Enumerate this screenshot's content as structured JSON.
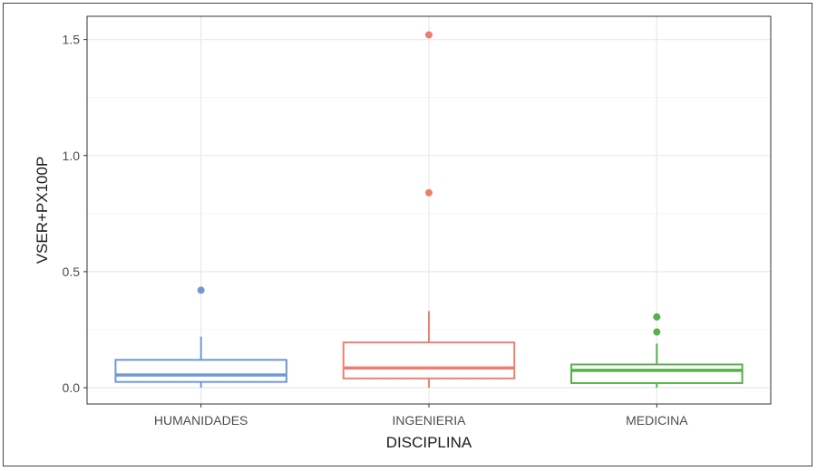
{
  "chart_data": {
    "type": "boxplot",
    "title": "",
    "xlabel": "DISCIPLINA",
    "ylabel": "VSER+PX100P",
    "ylim": [
      -0.07,
      1.6
    ],
    "yticks": [
      0.0,
      0.5,
      1.0,
      1.5
    ],
    "ytick_labels": [
      "0.0",
      "0.5",
      "1.0",
      "1.5"
    ],
    "grid": true,
    "legend": "none",
    "categories": [
      "HUMANIDADES",
      "INGENIERIA",
      "MEDICINA"
    ],
    "series": [
      {
        "category": "HUMANIDADES",
        "color": "#6f99d3",
        "whisker_low": 0.0,
        "q1": 0.025,
        "median": 0.055,
        "q3": 0.12,
        "whisker_high": 0.22,
        "outliers": [
          0.42
        ]
      },
      {
        "category": "INGENIERIA",
        "color": "#ec7f72",
        "whisker_low": 0.0,
        "q1": 0.04,
        "median": 0.085,
        "q3": 0.195,
        "whisker_high": 0.33,
        "outliers": [
          0.84,
          1.52
        ]
      },
      {
        "category": "MEDICINA",
        "color": "#56b04b",
        "whisker_low": 0.0,
        "q1": 0.02,
        "median": 0.075,
        "q3": 0.1,
        "whisker_high": 0.19,
        "outliers": [
          0.24,
          0.305
        ]
      }
    ]
  }
}
